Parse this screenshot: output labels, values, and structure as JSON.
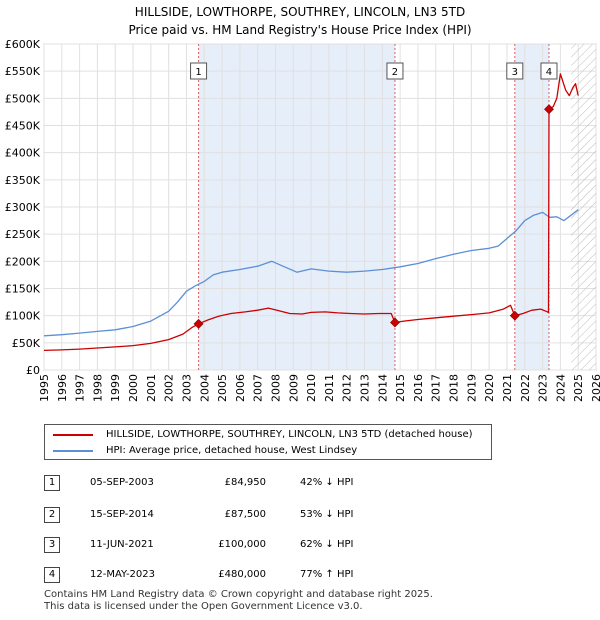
{
  "chart_data": {
    "type": "line",
    "title": "HILLSIDE, LOWTHORPE, SOUTHREY, LINCOLN, LN3 5TD",
    "subtitle": "Price paid vs. HM Land Registry's House Price Index (HPI)",
    "xlim": [
      1995,
      2026
    ],
    "ylim": [
      0,
      600000
    ],
    "x_ticks": [
      1995,
      1996,
      1997,
      1998,
      1999,
      2000,
      2001,
      2002,
      2003,
      2004,
      2005,
      2006,
      2007,
      2008,
      2009,
      2010,
      2011,
      2012,
      2013,
      2014,
      2015,
      2016,
      2017,
      2018,
      2019,
      2020,
      2021,
      2022,
      2023,
      2024,
      2025,
      2026
    ],
    "y_ticks": [
      {
        "value": 0,
        "label": "£0"
      },
      {
        "value": 50000,
        "label": "£50K"
      },
      {
        "value": 100000,
        "label": "£100K"
      },
      {
        "value": 150000,
        "label": "£150K"
      },
      {
        "value": 200000,
        "label": "£200K"
      },
      {
        "value": 250000,
        "label": "£250K"
      },
      {
        "value": 300000,
        "label": "£300K"
      },
      {
        "value": 350000,
        "label": "£350K"
      },
      {
        "value": 400000,
        "label": "£400K"
      },
      {
        "value": 450000,
        "label": "£450K"
      },
      {
        "value": 500000,
        "label": "£500K"
      },
      {
        "value": 550000,
        "label": "£550K"
      },
      {
        "value": 600000,
        "label": "£600K"
      }
    ],
    "grid": true,
    "shaded_periods": [
      {
        "start": 2003.68,
        "end": 2014.71
      },
      {
        "start": 2021.44,
        "end": 2023.36
      }
    ],
    "hatched_future_start": 2024.6,
    "series": [
      {
        "name": "HILLSIDE, LOWTHORPE, SOUTHREY, LINCOLN, LN3 5TD (detached house)",
        "color": "#cc0000",
        "x": [
          1995.0,
          1996.0,
          1997.0,
          1998.0,
          1999.0,
          2000.0,
          2001.0,
          2002.0,
          2002.8,
          2003.3,
          2003.68,
          2004.2,
          2004.8,
          2005.5,
          2006.3,
          2007.0,
          2007.6,
          2008.2,
          2008.8,
          2009.5,
          2010.0,
          2010.8,
          2011.5,
          2012.2,
          2013.0,
          2013.8,
          2014.5,
          2014.71,
          2015.2,
          2016.0,
          2017.0,
          2018.0,
          2019.0,
          2020.0,
          2020.8,
          2021.2,
          2021.44,
          2021.9,
          2022.4,
          2022.9,
          2023.2,
          2023.33,
          2023.36,
          2023.6,
          2023.8,
          2024.0,
          2024.3,
          2024.5,
          2024.7,
          2024.85,
          2025.0
        ],
        "values": [
          36000,
          37000,
          38500,
          40500,
          42500,
          45000,
          49000,
          56000,
          66000,
          78000,
          84950,
          92000,
          99000,
          104000,
          107000,
          110000,
          114000,
          109000,
          104000,
          103000,
          106000,
          107000,
          105000,
          104000,
          103000,
          104000,
          104000,
          87500,
          90000,
          93000,
          96000,
          99000,
          102000,
          105000,
          112000,
          119000,
          100000,
          104000,
          110000,
          112000,
          108000,
          106000,
          480000,
          485000,
          500000,
          545000,
          515000,
          505000,
          520000,
          527000,
          505000
        ]
      },
      {
        "name": "HPI: Average price, detached house, West Lindsey",
        "color": "#5b8fd6",
        "x": [
          1995.0,
          1996.0,
          1997.0,
          1998.0,
          1999.0,
          2000.0,
          2001.0,
          2002.0,
          2002.5,
          2003.0,
          2003.5,
          2004.0,
          2004.5,
          2005.0,
          2006.0,
          2007.0,
          2007.8,
          2008.5,
          2009.2,
          2010.0,
          2011.0,
          2012.0,
          2013.0,
          2014.0,
          2015.0,
          2016.0,
          2017.0,
          2018.0,
          2019.0,
          2020.0,
          2020.5,
          2021.0,
          2021.5,
          2022.0,
          2022.5,
          2023.0,
          2023.4,
          2023.8,
          2024.2,
          2024.6,
          2025.0
        ],
        "values": [
          63000,
          65000,
          68000,
          71000,
          74000,
          80000,
          90000,
          108000,
          125000,
          145000,
          155000,
          163000,
          175000,
          180000,
          185000,
          191000,
          200000,
          190000,
          180000,
          186000,
          182000,
          180000,
          182000,
          185000,
          190000,
          196000,
          205000,
          213000,
          220000,
          224000,
          228000,
          242000,
          256000,
          275000,
          285000,
          290000,
          281000,
          282000,
          275000,
          285000,
          295000
        ]
      }
    ],
    "markers": [
      {
        "label": "1",
        "x": 2003.68,
        "value": 84950
      },
      {
        "label": "2",
        "x": 2014.71,
        "value": 87500
      },
      {
        "label": "3",
        "x": 2021.44,
        "value": 100000
      },
      {
        "label": "4",
        "x": 2023.36,
        "value": 480000
      }
    ]
  },
  "legend": {
    "property": "HILLSIDE, LOWTHORPE, SOUTHREY, LINCOLN, LN3 5TD (detached house)",
    "hpi": "HPI: Average price, detached house, West Lindsey",
    "property_color": "#cc0000",
    "hpi_color": "#5b8fd6"
  },
  "transactions": [
    {
      "num": "1",
      "date": "05-SEP-2003",
      "price": "£84,950",
      "hpi": "42% ↓ HPI"
    },
    {
      "num": "2",
      "date": "15-SEP-2014",
      "price": "£87,500",
      "hpi": "53% ↓ HPI"
    },
    {
      "num": "3",
      "date": "11-JUN-2021",
      "price": "£100,000",
      "hpi": "62% ↓ HPI"
    },
    {
      "num": "4",
      "date": "12-MAY-2023",
      "price": "£480,000",
      "hpi": "77% ↑ HPI"
    }
  ],
  "footer": {
    "line1": "Contains HM Land Registry data © Crown copyright and database right 2025.",
    "line2": "This data is licensed under the Open Government Licence v3.0."
  }
}
